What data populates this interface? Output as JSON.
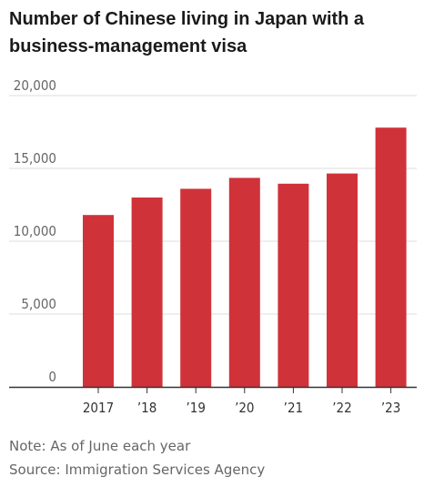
{
  "chart_data": {
    "type": "bar",
    "title": "Number of Chinese living in Japan with a business-management visa",
    "categories": [
      "2017",
      "’18",
      "’19",
      "’20",
      "’21",
      "’22",
      "’23"
    ],
    "values": [
      11800,
      13000,
      13600,
      14350,
      13950,
      14650,
      17800
    ],
    "yticks": [
      0,
      5000,
      10000,
      15000,
      20000
    ],
    "ytick_labels": [
      "0",
      "5,000",
      "10,000",
      "15,000",
      "20,000"
    ],
    "ylim": [
      0,
      20000
    ],
    "xlabel": "",
    "ylabel": "",
    "grid": true,
    "bar_color": "#d0323a",
    "grid_color": "#dddddd",
    "axis_color": "#333333",
    "note": "Note: As of June each year",
    "source": "Source: Immigration Services Agency"
  }
}
